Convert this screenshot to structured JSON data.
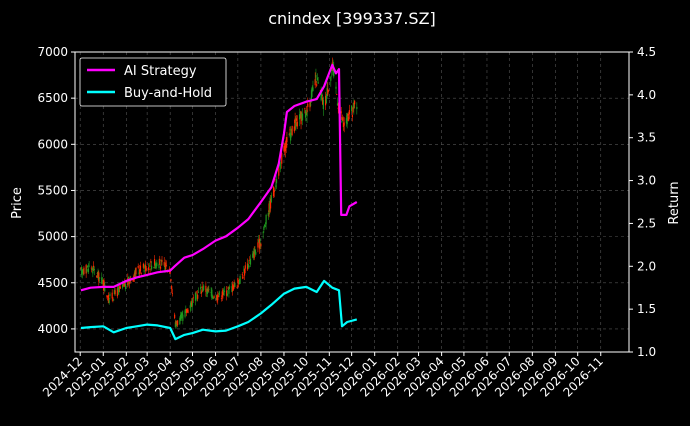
{
  "chart_data": {
    "type": "line",
    "title": "cnindex [399337.SZ]",
    "ylabel_left": "Price",
    "ylabel_right": "Return",
    "ylim_left": [
      3750,
      7000
    ],
    "ylim_right": [
      1.0,
      4.5
    ],
    "yticks_left": [
      4000,
      4500,
      5000,
      5500,
      6000,
      6500,
      7000
    ],
    "yticks_right": [
      "1.0",
      "1.5",
      "2.0",
      "2.5",
      "3.0",
      "3.5",
      "4.0",
      "4.5"
    ],
    "x_range": [
      "2024-11-24",
      "2026-12-09"
    ],
    "x_ticks": [
      "2024-12",
      "2025-01",
      "2025-02",
      "2025-03",
      "2025-04",
      "2025-05",
      "2025-06",
      "2025-07",
      "2025-08",
      "2025-09",
      "2025-10",
      "2025-11",
      "2025-12",
      "2026-01",
      "2026-02",
      "2026-03",
      "2026-04",
      "2026-05",
      "2026-06",
      "2026-07",
      "2026-08",
      "2026-09",
      "2026-10",
      "2026-11"
    ],
    "grid": true,
    "legend_position": "top-left",
    "colors": {
      "ai_strategy": "#ff00ff",
      "buy_and_hold": "#00ffff",
      "candle_up": "#ff2a00",
      "candle_down": "#1f9a1f",
      "background": "#000000",
      "text": "#ffffff"
    },
    "series": [
      {
        "name": "AI Strategy",
        "axis": "right",
        "points": [
          [
            "2024-12-02",
            1.72
          ],
          [
            "2024-12-15",
            1.75
          ],
          [
            "2025-01-01",
            1.76
          ],
          [
            "2025-01-15",
            1.76
          ],
          [
            "2025-02-01",
            1.83
          ],
          [
            "2025-02-15",
            1.87
          ],
          [
            "2025-03-01",
            1.9
          ],
          [
            "2025-03-15",
            1.93
          ],
          [
            "2025-04-01",
            1.95
          ],
          [
            "2025-04-07",
            2.0
          ],
          [
            "2025-04-20",
            2.1
          ],
          [
            "2025-05-01",
            2.13
          ],
          [
            "2025-05-15",
            2.2
          ],
          [
            "2025-06-01",
            2.3
          ],
          [
            "2025-06-15",
            2.35
          ],
          [
            "2025-07-01",
            2.45
          ],
          [
            "2025-07-15",
            2.55
          ],
          [
            "2025-08-01",
            2.75
          ],
          [
            "2025-08-15",
            2.92
          ],
          [
            "2025-08-25",
            3.2
          ],
          [
            "2025-09-01",
            3.55
          ],
          [
            "2025-09-05",
            3.8
          ],
          [
            "2025-09-15",
            3.87
          ],
          [
            "2025-10-01",
            3.92
          ],
          [
            "2025-10-15",
            3.95
          ],
          [
            "2025-10-25",
            4.1
          ],
          [
            "2025-11-05",
            4.35
          ],
          [
            "2025-11-10",
            4.25
          ],
          [
            "2025-11-14",
            4.3
          ],
          [
            "2025-11-17",
            2.6
          ],
          [
            "2025-11-24",
            2.6
          ],
          [
            "2025-11-28",
            2.7
          ],
          [
            "2025-12-08",
            2.75
          ]
        ]
      },
      {
        "name": "Buy-and-Hold",
        "axis": "right",
        "points": [
          [
            "2024-12-02",
            1.28
          ],
          [
            "2024-12-15",
            1.29
          ],
          [
            "2025-01-01",
            1.3
          ],
          [
            "2025-01-15",
            1.23
          ],
          [
            "2025-02-01",
            1.28
          ],
          [
            "2025-02-15",
            1.3
          ],
          [
            "2025-03-01",
            1.32
          ],
          [
            "2025-03-15",
            1.31
          ],
          [
            "2025-04-01",
            1.28
          ],
          [
            "2025-04-08",
            1.15
          ],
          [
            "2025-04-20",
            1.2
          ],
          [
            "2025-05-01",
            1.22
          ],
          [
            "2025-05-15",
            1.26
          ],
          [
            "2025-06-01",
            1.24
          ],
          [
            "2025-06-15",
            1.25
          ],
          [
            "2025-07-01",
            1.3
          ],
          [
            "2025-07-15",
            1.35
          ],
          [
            "2025-08-01",
            1.45
          ],
          [
            "2025-08-15",
            1.55
          ],
          [
            "2025-09-01",
            1.68
          ],
          [
            "2025-09-15",
            1.74
          ],
          [
            "2025-10-01",
            1.76
          ],
          [
            "2025-10-15",
            1.7
          ],
          [
            "2025-10-25",
            1.83
          ],
          [
            "2025-11-05",
            1.75
          ],
          [
            "2025-11-14",
            1.72
          ],
          [
            "2025-11-18",
            1.3
          ],
          [
            "2025-11-25",
            1.35
          ],
          [
            "2025-12-08",
            1.38
          ]
        ]
      },
      {
        "name": "cnindex price",
        "axis": "left",
        "type": "candlestick",
        "points": [
          [
            "2024-12-02",
            4620
          ],
          [
            "2024-12-15",
            4680
          ],
          [
            "2025-01-01",
            4500
          ],
          [
            "2025-01-08",
            4320
          ],
          [
            "2025-02-01",
            4480
          ],
          [
            "2025-02-15",
            4620
          ],
          [
            "2025-03-01",
            4680
          ],
          [
            "2025-03-15",
            4720
          ],
          [
            "2025-04-01",
            4650
          ],
          [
            "2025-04-08",
            4050
          ],
          [
            "2025-04-20",
            4150
          ],
          [
            "2025-05-01",
            4300
          ],
          [
            "2025-05-15",
            4450
          ],
          [
            "2025-06-01",
            4350
          ],
          [
            "2025-06-15",
            4400
          ],
          [
            "2025-07-01",
            4500
          ],
          [
            "2025-07-15",
            4700
          ],
          [
            "2025-08-01",
            4950
          ],
          [
            "2025-08-15",
            5400
          ],
          [
            "2025-09-01",
            5950
          ],
          [
            "2025-09-15",
            6200
          ],
          [
            "2025-10-01",
            6350
          ],
          [
            "2025-10-15",
            6700
          ],
          [
            "2025-10-25",
            6400
          ],
          [
            "2025-11-05",
            6850
          ],
          [
            "2025-11-14",
            6400
          ],
          [
            "2025-11-20",
            6200
          ],
          [
            "2025-11-28",
            6300
          ],
          [
            "2025-12-08",
            6450
          ]
        ]
      }
    ]
  }
}
